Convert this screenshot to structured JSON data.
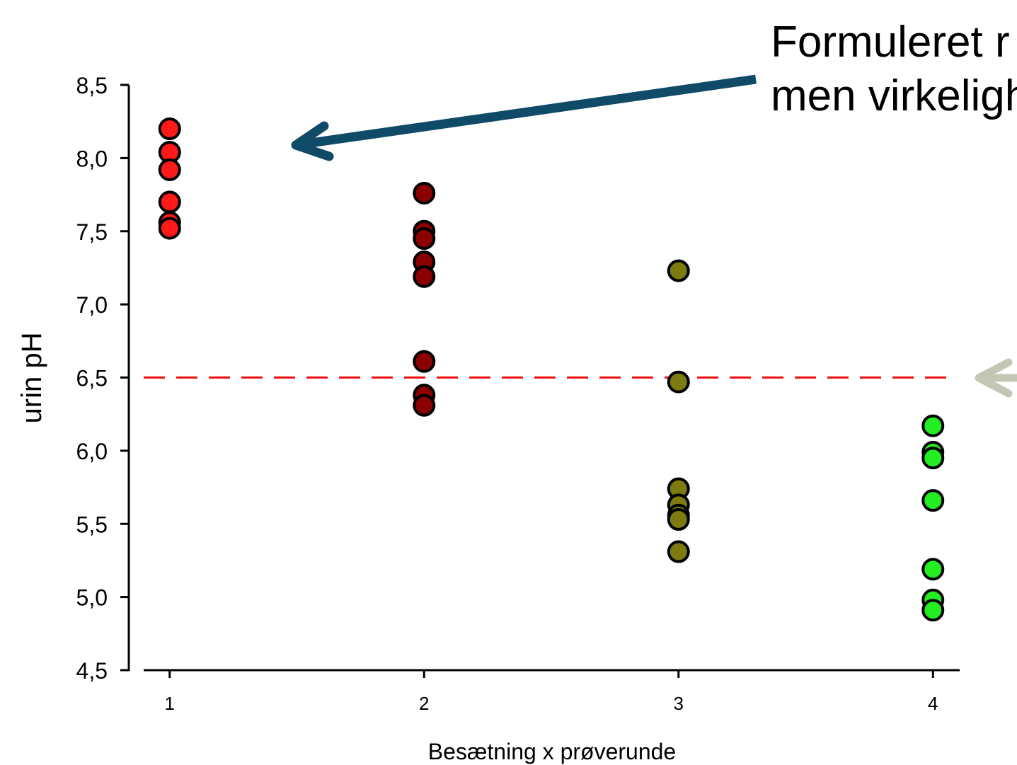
{
  "annotation": {
    "line1": "Formuleret r",
    "line2": "men virkeligh"
  },
  "colors": {
    "group1": "#ff1a1a",
    "group2": "#8b0000",
    "group3": "#7d7a10",
    "group4": "#22ee22",
    "threshold": "#ee1111",
    "arrow_main": "#0f4a66",
    "arrow_right": "#c4c6b4"
  },
  "chart_data": {
    "type": "scatter",
    "xlabel": "Besætning x prøverunde",
    "ylabel": "urin pH",
    "xlim": [
      0.5,
      4.5
    ],
    "ylim": [
      4.5,
      8.5
    ],
    "x_ticks": [
      "1",
      "2",
      "3",
      "4"
    ],
    "y_ticks": [
      "4,5",
      "5,0",
      "5,5",
      "6,0",
      "6,5",
      "7,0",
      "7,5",
      "8,0",
      "8,5"
    ],
    "reference_line": {
      "y": 6.5,
      "style": "dashed"
    },
    "grid": false,
    "series": [
      {
        "x": 1,
        "color_key": "group1",
        "values": [
          8.2,
          8.04,
          7.92,
          7.7,
          7.56,
          7.52
        ]
      },
      {
        "x": 2,
        "color_key": "group2",
        "values": [
          7.76,
          7.5,
          7.45,
          7.29,
          7.19,
          6.61,
          6.38,
          6.31
        ]
      },
      {
        "x": 3,
        "color_key": "group3",
        "values": [
          7.23,
          6.47,
          5.74,
          5.63,
          5.56,
          5.53,
          5.31
        ]
      },
      {
        "x": 4,
        "color_key": "group4",
        "values": [
          6.17,
          5.99,
          5.95,
          5.66,
          5.19,
          4.98,
          4.91
        ]
      }
    ]
  }
}
